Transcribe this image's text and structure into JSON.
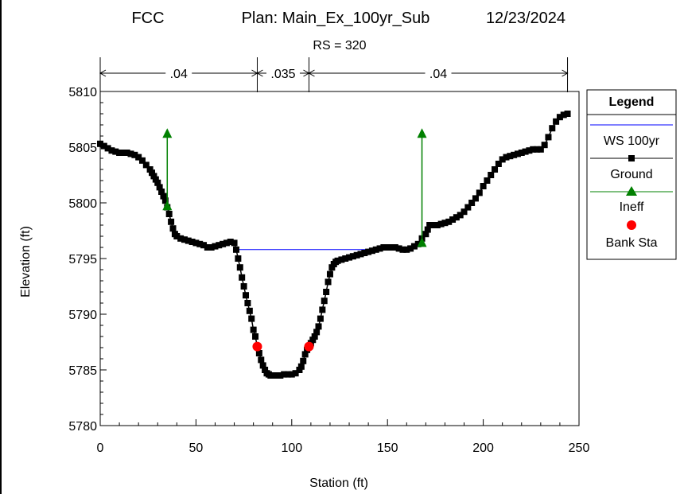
{
  "chart_data": {
    "type": "line",
    "title": {
      "project": "FCC",
      "plan": "Plan: Main_Ex_100yr_Sub",
      "date": "12/23/2024"
    },
    "subtitle": "RS = 320",
    "xlabel": "Station (ft)",
    "ylabel": "Elevation (ft)",
    "xlim": [
      0,
      250
    ],
    "ylim": [
      5780,
      5810
    ],
    "xticks": [
      0,
      50,
      100,
      150,
      200,
      250
    ],
    "yticks": [
      5780,
      5785,
      5790,
      5795,
      5800,
      5805,
      5810
    ],
    "grid": false,
    "legend_position": "right",
    "roughness": [
      {
        "label": ".04",
        "from": 0,
        "to": 82
      },
      {
        "label": ".035",
        "from": 82,
        "to": 109
      },
      {
        "label": ".04",
        "from": 109,
        "to": 244
      }
    ],
    "series": [
      {
        "name": "WS 100yr",
        "color": "#0000ff",
        "style": "line",
        "x": [
          70,
          163
        ],
        "y": [
          5795.8,
          5795.8
        ]
      },
      {
        "name": "Ground",
        "color": "#000000",
        "style": "line-square-markers",
        "x": [
          0,
          2,
          4,
          6,
          8,
          10,
          12,
          14,
          16,
          18,
          20,
          22,
          24,
          26,
          27,
          28,
          29,
          30,
          31,
          32,
          33,
          34,
          35,
          36,
          37,
          38,
          39,
          40,
          42,
          44,
          46,
          48,
          50,
          52,
          54,
          56,
          58,
          60,
          62,
          64,
          66,
          68,
          70,
          71,
          72,
          73,
          74,
          75,
          76,
          77,
          78,
          79,
          80,
          81,
          82,
          83,
          84,
          85,
          86,
          87,
          88,
          89,
          90,
          92,
          94,
          96,
          98,
          100,
          102,
          104,
          105,
          106,
          107,
          108,
          109,
          110,
          111,
          112,
          113,
          114,
          115,
          116,
          117,
          118,
          119,
          120,
          121,
          122,
          123,
          124,
          126,
          128,
          130,
          132,
          134,
          136,
          138,
          140,
          142,
          144,
          146,
          148,
          150,
          152,
          154,
          156,
          158,
          160,
          162,
          164,
          166,
          168,
          170,
          171,
          172,
          174,
          176,
          178,
          180,
          182,
          184,
          186,
          188,
          190,
          192,
          194,
          196,
          198,
          200,
          202,
          204,
          206,
          208,
          210,
          212,
          214,
          216,
          218,
          220,
          222,
          224,
          226,
          228,
          230,
          232,
          234,
          236,
          238,
          240,
          242,
          244
        ],
        "y": [
          5805.3,
          5805.1,
          5804.9,
          5804.7,
          5804.6,
          5804.5,
          5804.5,
          5804.5,
          5804.4,
          5804.3,
          5804.1,
          5803.8,
          5803.4,
          5803.0,
          5802.7,
          5802.4,
          5802.1,
          5801.8,
          5801.4,
          5801.0,
          5800.6,
          5800.2,
          5799.6,
          5799.0,
          5798.3,
          5797.7,
          5797.2,
          5797.0,
          5796.8,
          5796.7,
          5796.6,
          5796.5,
          5796.4,
          5796.3,
          5796.2,
          5796.0,
          5796.0,
          5796.1,
          5796.2,
          5796.3,
          5796.4,
          5796.5,
          5796.4,
          5795.8,
          5795.0,
          5794.2,
          5793.3,
          5792.5,
          5791.7,
          5791.0,
          5790.3,
          5789.6,
          5788.6,
          5788.0,
          5787.1,
          5786.5,
          5785.9,
          5785.4,
          5785.0,
          5784.7,
          5784.6,
          5784.5,
          5784.5,
          5784.5,
          5784.5,
          5784.6,
          5784.6,
          5784.6,
          5784.7,
          5785.0,
          5785.3,
          5785.8,
          5786.4,
          5786.8,
          5787.1,
          5787.4,
          5787.7,
          5788.0,
          5788.4,
          5788.9,
          5789.6,
          5790.4,
          5791.2,
          5792.0,
          5792.9,
          5793.6,
          5794.2,
          5794.5,
          5794.7,
          5794.8,
          5794.9,
          5795.0,
          5795.1,
          5795.2,
          5795.3,
          5795.4,
          5795.5,
          5795.6,
          5795.7,
          5795.8,
          5795.9,
          5796.0,
          5796.0,
          5796.0,
          5796.0,
          5795.9,
          5795.8,
          5795.8,
          5795.9,
          5796.1,
          5796.3,
          5796.8,
          5797.2,
          5797.6,
          5798.0,
          5798.0,
          5798.0,
          5798.1,
          5798.2,
          5798.3,
          5798.5,
          5798.7,
          5798.9,
          5799.2,
          5799.6,
          5800.0,
          5800.4,
          5800.9,
          5801.5,
          5802.0,
          5802.5,
          5803.0,
          5803.5,
          5803.9,
          5804.1,
          5804.2,
          5804.3,
          5804.4,
          5804.5,
          5804.6,
          5804.7,
          5804.8,
          5804.8,
          5804.8,
          5805.2,
          5805.9,
          5806.7,
          5807.3,
          5807.7,
          5807.9,
          5808.0
        ]
      },
      {
        "name": "Ineff",
        "color": "#008000",
        "style": "vertical-markers-triangle",
        "stations": [
          {
            "x": 35,
            "y_bottom": 5799.7,
            "y_top": 5806.2
          },
          {
            "x": 168,
            "y_bottom": 5796.4,
            "y_top": 5806.2
          }
        ]
      },
      {
        "name": "Bank Sta",
        "color": "#ff0000",
        "style": "circle-markers",
        "x": [
          82,
          109
        ],
        "y": [
          5787.1,
          5787.1
        ]
      }
    ],
    "legend_title": "Legend"
  }
}
